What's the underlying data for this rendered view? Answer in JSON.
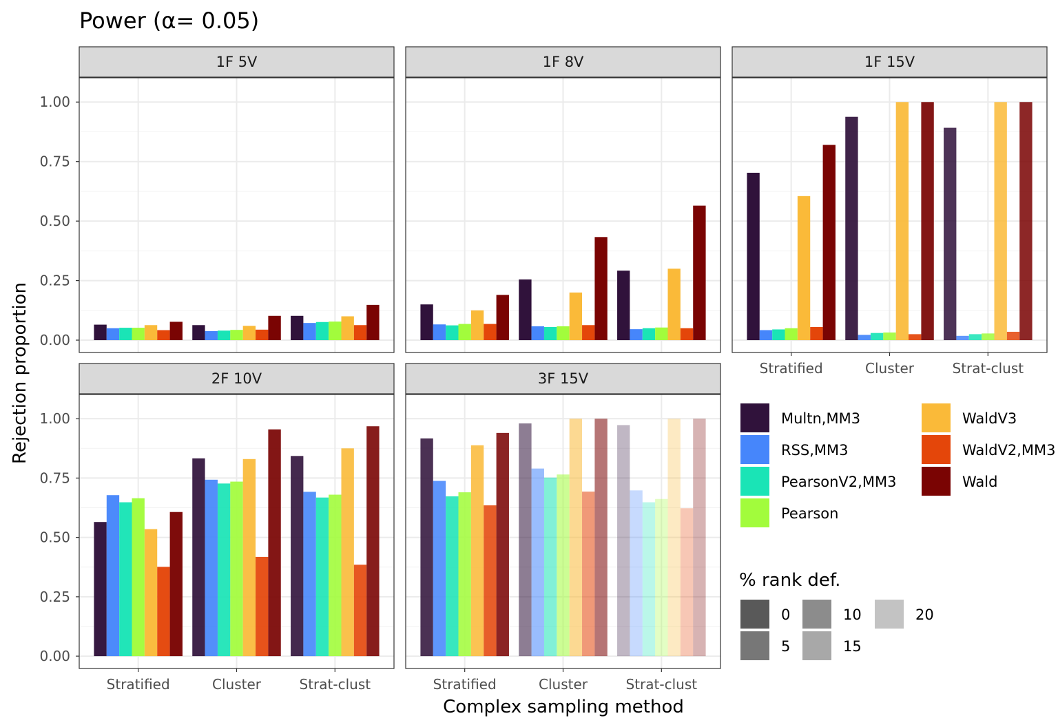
{
  "chart_data": {
    "type": "bar",
    "title": "Power (α= 0.05)",
    "xlabel": "Complex sampling method",
    "ylabel": "Rejection proportion",
    "ylim": [
      0,
      1.05
    ],
    "y_ticks": [
      "0.00",
      "0.25",
      "0.50",
      "0.75",
      "1.00"
    ],
    "categories": [
      "Stratified",
      "Cluster",
      "Strat-clust"
    ],
    "grid": true,
    "legend_position": "right",
    "legend": {
      "series_title": "",
      "series": [
        {
          "name": "Multn,MM3",
          "color": "#30123B"
        },
        {
          "name": "RSS,MM3",
          "color": "#4686FB"
        },
        {
          "name": "PearsonV2,MM3",
          "color": "#1AE4B6"
        },
        {
          "name": "Pearson",
          "color": "#A2FC3C"
        },
        {
          "name": "WaldV3",
          "color": "#FABA39"
        },
        {
          "name": "WaldV2,MM3",
          "color": "#E4460A"
        },
        {
          "name": "Wald",
          "color": "#7A0403"
        }
      ],
      "alpha_title": "% rank def.",
      "alpha_levels": [
        {
          "label": "0",
          "gray": "#595959"
        },
        {
          "label": "5",
          "gray": "#777777"
        },
        {
          "label": "10",
          "gray": "#8c8c8c"
        },
        {
          "label": "15",
          "gray": "#a8a8a8"
        },
        {
          "label": "20",
          "gray": "#c3c3c3"
        }
      ]
    },
    "facets": [
      {
        "label": "1F 5V",
        "category_opacity": [
          1,
          1,
          1
        ],
        "series": [
          {
            "name": "Multn,MM3",
            "values": [
              0.065,
              0.063,
              0.102
            ]
          },
          {
            "name": "RSS,MM3",
            "values": [
              0.05,
              0.038,
              0.072
            ]
          },
          {
            "name": "PearsonV2,MM3",
            "values": [
              0.052,
              0.04,
              0.076
            ]
          },
          {
            "name": "Pearson",
            "values": [
              0.052,
              0.043,
              0.078
            ]
          },
          {
            "name": "WaldV3",
            "values": [
              0.063,
              0.06,
              0.1
            ]
          },
          {
            "name": "WaldV2,MM3",
            "values": [
              0.042,
              0.044,
              0.063
            ]
          },
          {
            "name": "Wald",
            "values": [
              0.077,
              0.102,
              0.148
            ]
          }
        ]
      },
      {
        "label": "1F 8V",
        "category_opacity": [
          1,
          1,
          1
        ],
        "series": [
          {
            "name": "Multn,MM3",
            "values": [
              0.15,
              0.255,
              0.292
            ]
          },
          {
            "name": "RSS,MM3",
            "values": [
              0.066,
              0.058,
              0.046
            ]
          },
          {
            "name": "PearsonV2,MM3",
            "values": [
              0.062,
              0.055,
              0.05
            ]
          },
          {
            "name": "Pearson",
            "values": [
              0.068,
              0.058,
              0.053
            ]
          },
          {
            "name": "WaldV3",
            "values": [
              0.125,
              0.2,
              0.3
            ]
          },
          {
            "name": "WaldV2,MM3",
            "values": [
              0.068,
              0.063,
              0.05
            ]
          },
          {
            "name": "Wald",
            "values": [
              0.19,
              0.433,
              0.565
            ]
          }
        ]
      },
      {
        "label": "1F 15V",
        "category_opacity": [
          1,
          0.93,
          0.86
        ],
        "series": [
          {
            "name": "Multn,MM3",
            "values": [
              0.703,
              0.938,
              0.892
            ]
          },
          {
            "name": "RSS,MM3",
            "values": [
              0.042,
              0.022,
              0.018
            ]
          },
          {
            "name": "PearsonV2,MM3",
            "values": [
              0.045,
              0.03,
              0.025
            ]
          },
          {
            "name": "Pearson",
            "values": [
              0.05,
              0.032,
              0.028
            ]
          },
          {
            "name": "WaldV3",
            "values": [
              0.605,
              1.0,
              1.0
            ]
          },
          {
            "name": "WaldV2,MM3",
            "values": [
              0.055,
              0.025,
              0.035
            ]
          },
          {
            "name": "Wald",
            "values": [
              0.82,
              1.0,
              1.0
            ]
          }
        ]
      },
      {
        "label": "2F 10V",
        "category_opacity": [
          0.97,
          0.93,
          0.9
        ],
        "series": [
          {
            "name": "Multn,MM3",
            "values": [
              0.565,
              0.833,
              0.843
            ]
          },
          {
            "name": "RSS,MM3",
            "values": [
              0.678,
              0.743,
              0.692
            ]
          },
          {
            "name": "PearsonV2,MM3",
            "values": [
              0.648,
              0.727,
              0.668
            ]
          },
          {
            "name": "Pearson",
            "values": [
              0.665,
              0.735,
              0.68
            ]
          },
          {
            "name": "WaldV3",
            "values": [
              0.535,
              0.83,
              0.875
            ]
          },
          {
            "name": "WaldV2,MM3",
            "values": [
              0.376,
              0.418,
              0.385
            ]
          },
          {
            "name": "Wald",
            "values": [
              0.607,
              0.955,
              0.968
            ]
          }
        ]
      },
      {
        "label": "3F 15V",
        "category_opacity": [
          0.87,
          0.55,
          0.3
        ],
        "series": [
          {
            "name": "Multn,MM3",
            "values": [
              0.917,
              0.98,
              0.973
            ]
          },
          {
            "name": "RSS,MM3",
            "values": [
              0.738,
              0.79,
              0.698
            ]
          },
          {
            "name": "PearsonV2,MM3",
            "values": [
              0.673,
              0.752,
              0.648
            ]
          },
          {
            "name": "Pearson",
            "values": [
              0.69,
              0.765,
              0.662
            ]
          },
          {
            "name": "WaldV3",
            "values": [
              0.888,
              1.0,
              1.0
            ]
          },
          {
            "name": "WaldV2,MM3",
            "values": [
              0.635,
              0.693,
              0.623
            ]
          },
          {
            "name": "Wald",
            "values": [
              0.94,
              1.0,
              1.0
            ]
          }
        ]
      }
    ]
  }
}
